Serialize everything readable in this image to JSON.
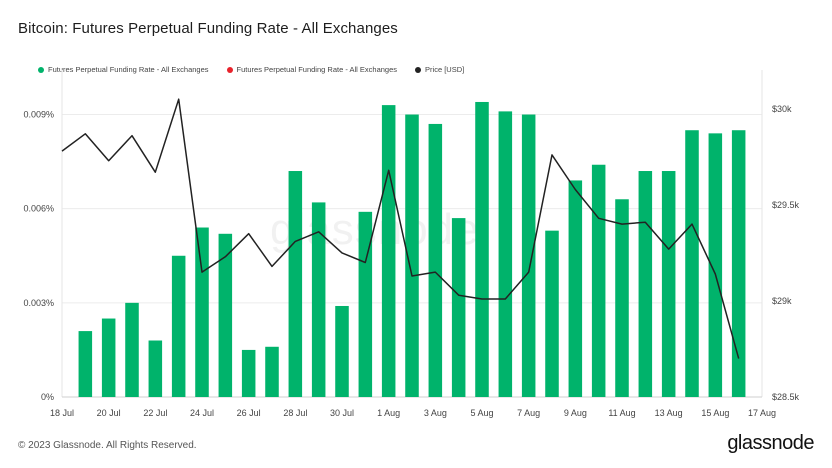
{
  "title": "Bitcoin: Futures Perpetual Funding Rate - All Exchanges",
  "footer": "© 2023 Glassnode. All Rights Reserved.",
  "brand": "glassnode",
  "watermark": "glassnode",
  "legend": [
    {
      "label": "Futures Perpetual Funding Rate - All Exchanges",
      "color": "#00b36b"
    },
    {
      "label": "Futures Perpetual Funding Rate - All Exchanges",
      "color": "#e8222b"
    },
    {
      "label": "Price [USD]",
      "color": "#222222"
    }
  ],
  "chart_data": {
    "type": "bar",
    "x_ticks": [
      "18 Jul",
      "20 Jul",
      "22 Jul",
      "24 Jul",
      "26 Jul",
      "28 Jul",
      "30 Jul",
      "1 Aug",
      "3 Aug",
      "5 Aug",
      "7 Aug",
      "9 Aug",
      "11 Aug",
      "13 Aug",
      "15 Aug",
      "17 Aug"
    ],
    "y_ticks_left": [
      "0%",
      "0.003%",
      "0.006%",
      "0.009%"
    ],
    "y_ticks_right": [
      "$28.5k",
      "$29k",
      "$29.5k",
      "$30k"
    ],
    "ylim_left": [
      0,
      0.0101
    ],
    "ylim_right": [
      28500,
      30150
    ],
    "categories": [
      "19 Jul",
      "20 Jul",
      "21 Jul",
      "22 Jul",
      "23 Jul",
      "24 Jul",
      "25 Jul",
      "26 Jul",
      "27 Jul",
      "28 Jul",
      "29 Jul",
      "30 Jul",
      "31 Jul",
      "1 Aug",
      "2 Aug",
      "3 Aug",
      "4 Aug",
      "5 Aug",
      "6 Aug",
      "7 Aug",
      "8 Aug",
      "9 Aug",
      "10 Aug",
      "11 Aug",
      "12 Aug",
      "13 Aug",
      "14 Aug",
      "15 Aug",
      "16 Aug"
    ],
    "series": [
      {
        "name": "Futures Perpetual Funding Rate - All Exchanges",
        "color": "#00b36b",
        "values": [
          0.0021,
          0.0025,
          0.003,
          0.0018,
          0.0045,
          0.0054,
          0.0052,
          0.0015,
          0.0016,
          0.0072,
          0.0062,
          0.0029,
          0.0059,
          0.0093,
          0.009,
          0.0087,
          0.0057,
          0.0094,
          0.0091,
          0.009,
          0.0053,
          0.0069,
          0.0074,
          0.0063,
          0.0072,
          0.0072,
          0.0085,
          0.0084,
          0.0085
        ]
      },
      {
        "name": "Price [USD]",
        "color": "#222222",
        "x": [
          "18 Jul",
          "19 Jul",
          "20 Jul",
          "21 Jul",
          "22 Jul",
          "23 Jul",
          "24 Jul",
          "25 Jul",
          "26 Jul",
          "27 Jul",
          "28 Jul",
          "29 Jul",
          "30 Jul",
          "31 Jul",
          "1 Aug",
          "2 Aug",
          "3 Aug",
          "4 Aug",
          "5 Aug",
          "6 Aug",
          "7 Aug",
          "8 Aug",
          "9 Aug",
          "10 Aug",
          "11 Aug",
          "12 Aug",
          "13 Aug",
          "14 Aug",
          "15 Aug",
          "16 Aug"
        ],
        "values": [
          29780,
          29870,
          29730,
          29860,
          29670,
          30050,
          29150,
          29230,
          29350,
          29180,
          29310,
          29360,
          29250,
          29200,
          29680,
          29130,
          29150,
          29030,
          29010,
          29010,
          29150,
          29760,
          29580,
          29430,
          29400,
          29410,
          29270,
          29400,
          29140,
          28700
        ]
      }
    ],
    "grid": true
  }
}
